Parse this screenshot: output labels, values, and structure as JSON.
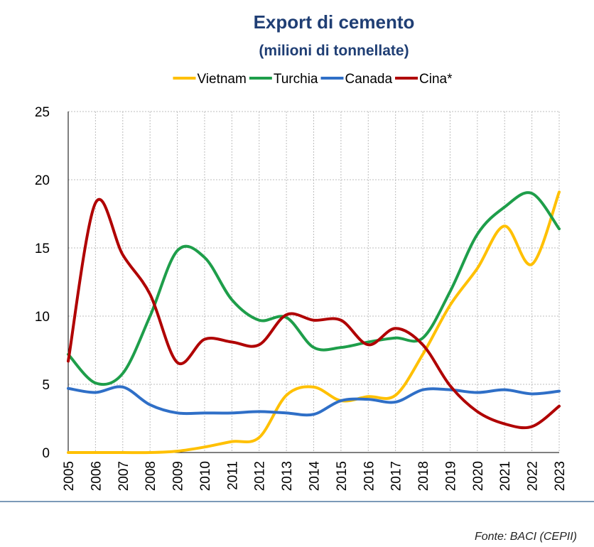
{
  "chart_data": {
    "type": "line",
    "title": "Export di cemento",
    "subtitle": "(milioni di tonnellate)",
    "source": "Fonte: BACI (CEPII)",
    "categories": [
      "2005",
      "2006",
      "2007",
      "2008",
      "2009",
      "2010",
      "2011",
      "2012",
      "2013",
      "2014",
      "2015",
      "2016",
      "2017",
      "2018",
      "2019",
      "2020",
      "2021",
      "2022",
      "2023"
    ],
    "series": [
      {
        "name": "Vietnam",
        "color": "#ffc000",
        "values": [
          0,
          0,
          0,
          0,
          0.1,
          0.4,
          0.8,
          1.1,
          4.2,
          4.8,
          3.8,
          4.1,
          4.2,
          7.2,
          10.8,
          13.5,
          16.6,
          13.8,
          19.1
        ]
      },
      {
        "name": "Turchia",
        "color": "#1e9e4a",
        "values": [
          7.2,
          5.1,
          5.8,
          10.0,
          14.8,
          14.3,
          11.2,
          9.7,
          9.9,
          7.7,
          7.7,
          8.1,
          8.4,
          8.4,
          11.8,
          16.0,
          18.0,
          19.0,
          16.4
        ]
      },
      {
        "name": "Canada",
        "color": "#2f6fc7",
        "values": [
          4.7,
          4.4,
          4.8,
          3.5,
          2.9,
          2.9,
          2.9,
          3.0,
          2.9,
          2.8,
          3.8,
          3.9,
          3.7,
          4.6,
          4.6,
          4.4,
          4.6,
          4.3,
          4.5
        ]
      },
      {
        "name": "Cina*",
        "color": "#b00000",
        "values": [
          6.7,
          18.3,
          14.5,
          11.6,
          6.6,
          8.3,
          8.1,
          7.9,
          10.1,
          9.7,
          9.7,
          7.9,
          9.1,
          7.9,
          4.9,
          3.0,
          2.1,
          1.9,
          3.4
        ]
      }
    ],
    "ylim": [
      0,
      25
    ],
    "yticks": [
      0,
      5,
      10,
      15,
      20,
      25
    ],
    "grid": true,
    "legend": "top",
    "smooth": true
  }
}
